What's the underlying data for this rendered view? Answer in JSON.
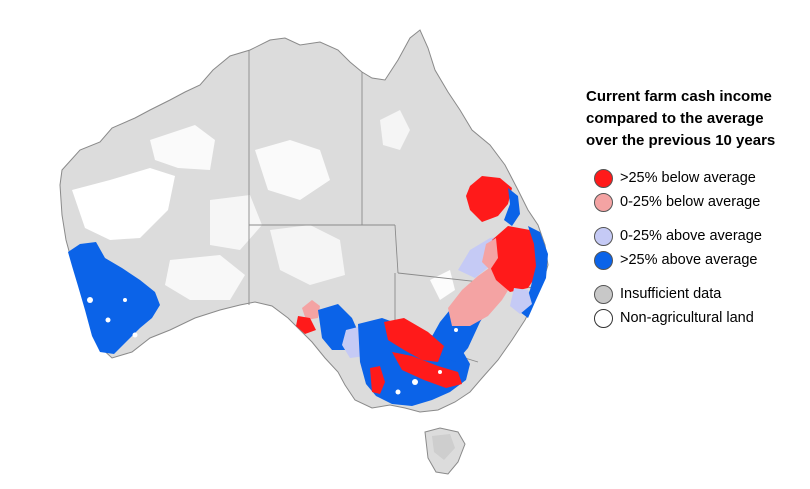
{
  "legend": {
    "title": "Current farm cash income\ncompared to the average\nover the previous 10 years",
    "items": [
      {
        "label": ">25% below average",
        "color": "#ff1a1a",
        "icon": "red-circle"
      },
      {
        "label": "0-25% below average",
        "color": "#f4a3a3",
        "icon": "pink-circle"
      },
      {
        "label": "0-25% above average",
        "color": "#c5caf5",
        "icon": "lavender-circle"
      },
      {
        "label": ">25% above average",
        "color": "#0b63e8",
        "icon": "blue-circle"
      },
      {
        "label": "Insufficient data",
        "color": "#c8c8c8",
        "icon": "gray-circle"
      },
      {
        "label": "Non-agricultural land",
        "color": "#ffffff",
        "icon": "white-circle"
      }
    ]
  },
  "colors": {
    "land": "#dcdcdc",
    "outline": "#7f7f7f",
    "red": "#ff1a1a",
    "pink": "#f4a3a3",
    "lavender": "#c5caf5",
    "blue": "#0b63e8"
  }
}
